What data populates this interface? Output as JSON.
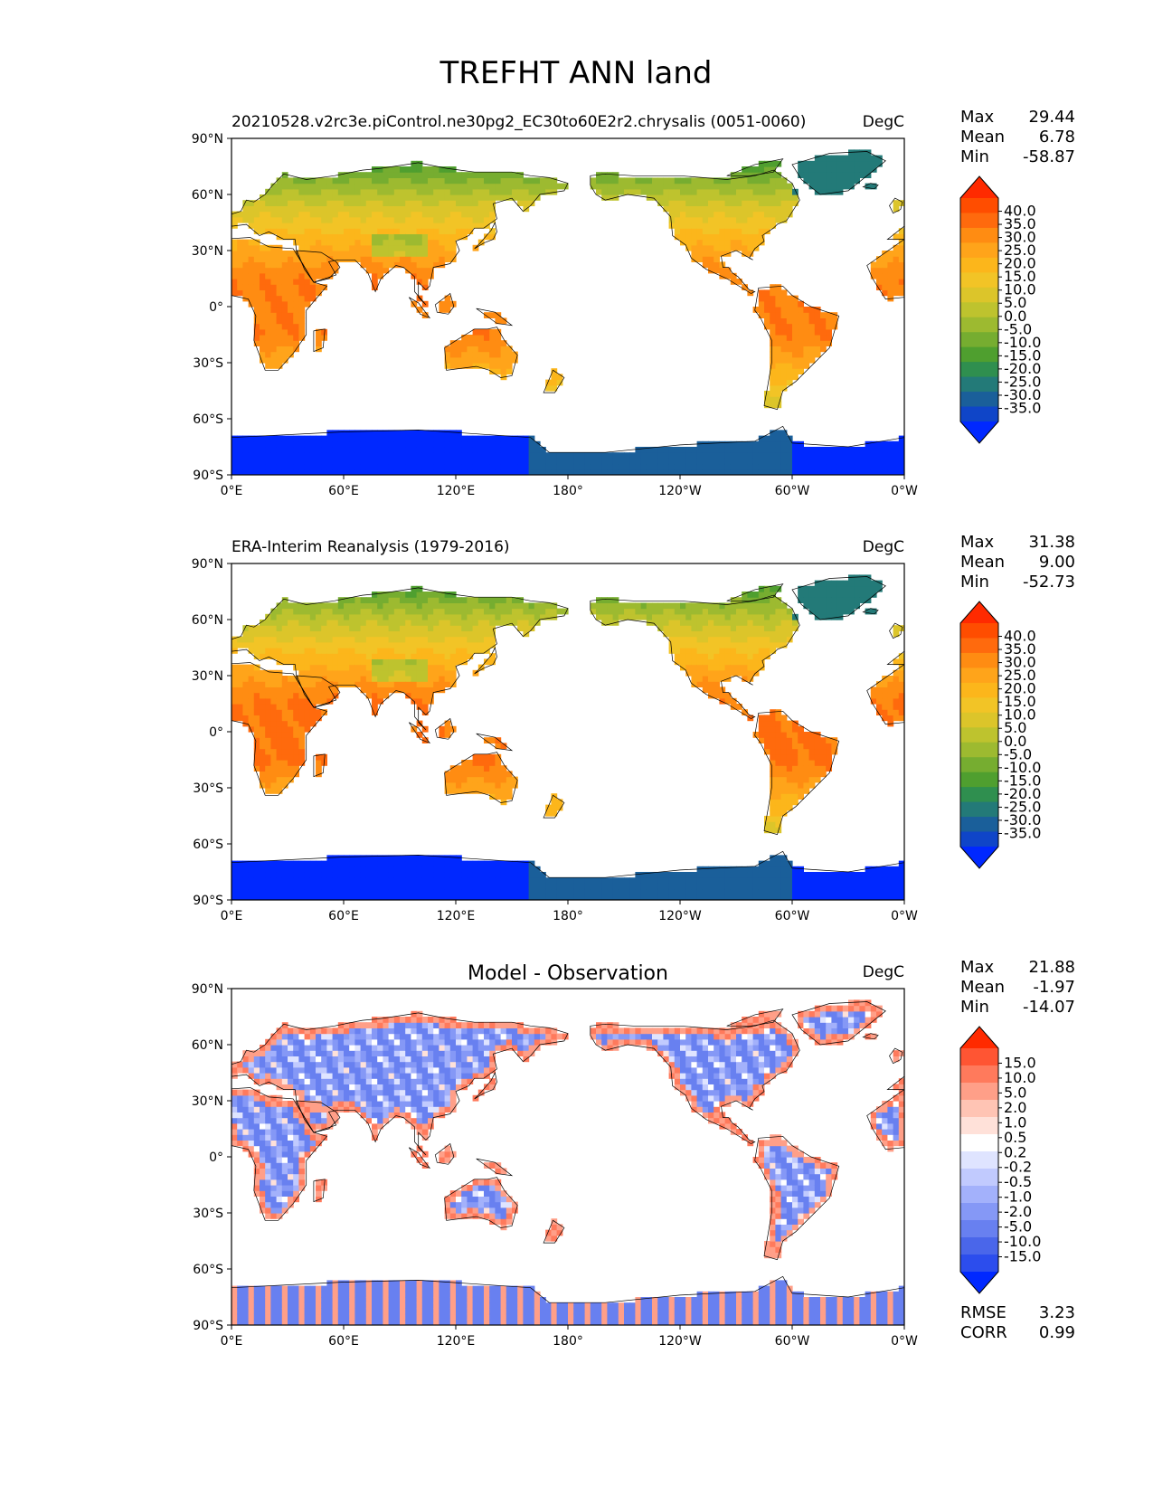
{
  "figure": {
    "title": "TREFHT ANN land"
  },
  "panels": [
    {
      "id": "model",
      "left_title": "20210528.v2rc3e.piControl.ne30pg2_EC30to60E2r2.chrysalis (0051-0060)",
      "center_title": "",
      "units": "DegC",
      "stats": [
        {
          "label": "Max",
          "value": "29.44"
        },
        {
          "label": "Mean",
          "value": "6.78"
        },
        {
          "label": "Min",
          "value": "-58.87"
        }
      ],
      "colorbar": [
        "40.0",
        "35.0",
        "30.0",
        "25.0",
        "20.0",
        "15.0",
        "10.0",
        "5.0",
        "0.0",
        "-5.0",
        "-10.0",
        "-15.0",
        "-20.0",
        "-25.0",
        "-30.0",
        "-35.0"
      ],
      "palette": "temperature",
      "footer_stats": []
    },
    {
      "id": "obs",
      "left_title": "ERA-Interim Reanalysis (1979-2016)",
      "center_title": "",
      "units": "DegC",
      "stats": [
        {
          "label": "Max",
          "value": "31.38"
        },
        {
          "label": "Mean",
          "value": "9.00"
        },
        {
          "label": "Min",
          "value": "-52.73"
        }
      ],
      "colorbar": [
        "40.0",
        "35.0",
        "30.0",
        "25.0",
        "20.0",
        "15.0",
        "10.0",
        "5.0",
        "0.0",
        "-5.0",
        "-10.0",
        "-15.0",
        "-20.0",
        "-25.0",
        "-30.0",
        "-35.0"
      ],
      "palette": "temperature",
      "footer_stats": []
    },
    {
      "id": "diff",
      "left_title": "",
      "center_title": "Model - Observation",
      "units": "DegC",
      "stats": [
        {
          "label": "Max",
          "value": "21.88"
        },
        {
          "label": "Mean",
          "value": "-1.97"
        },
        {
          "label": "Min",
          "value": "-14.07"
        }
      ],
      "colorbar": [
        "15.0",
        "10.0",
        "5.0",
        "2.0",
        "1.0",
        "0.5",
        "0.2",
        "-0.2",
        "-0.5",
        "-1.0",
        "-2.0",
        "-5.0",
        "-10.0",
        "-15.0"
      ],
      "palette": "difference",
      "footer_stats": [
        {
          "label": "RMSE",
          "value": "3.23"
        },
        {
          "label": "CORR",
          "value": "0.99"
        }
      ]
    }
  ],
  "axes": {
    "lat_ticks": [
      "90°N",
      "60°N",
      "30°N",
      "0°",
      "30°S",
      "60°S",
      "90°S"
    ],
    "lon_ticks": [
      "0°E",
      "60°E",
      "120°E",
      "180°",
      "120°W",
      "60°W",
      "0°W"
    ]
  },
  "colors": {
    "temperature": [
      "#ff2a00",
      "#ff4d00",
      "#ff6a0d",
      "#ff8c12",
      "#ffa41a",
      "#fcb61b",
      "#f2c426",
      "#dcc52a",
      "#bec32e",
      "#9dba30",
      "#76ad30",
      "#4f9f2f",
      "#2f8f4f",
      "#237a78",
      "#1a5f9a",
      "#0f45c8",
      "#0028ff"
    ],
    "difference": [
      "#ff2a00",
      "#ff5533",
      "#ff7a5c",
      "#ff9f88",
      "#ffc4b4",
      "#ffe1d9",
      "#ffffff",
      "#dfe4ff",
      "#c1cafe",
      "#a3b1fb",
      "#8598f6",
      "#6880f0",
      "#4a66ea",
      "#2c4ded",
      "#0028ff"
    ],
    "map_border": "#000000"
  }
}
